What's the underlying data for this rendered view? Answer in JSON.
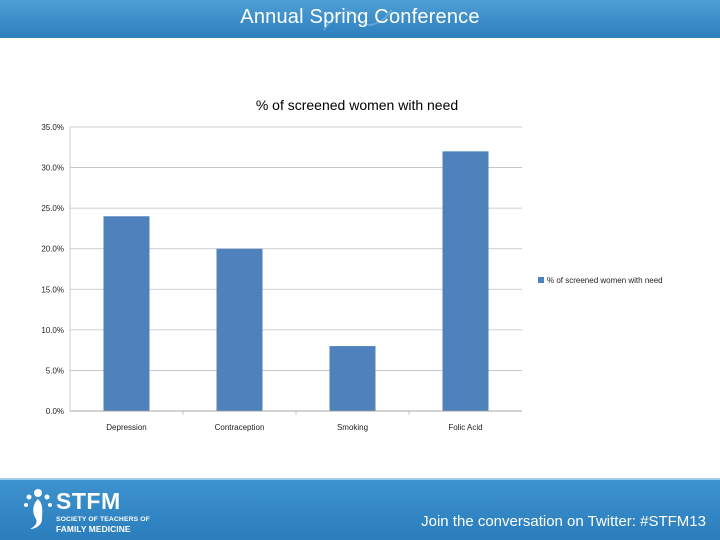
{
  "header": {
    "title": "Annual Spring Conference"
  },
  "footer": {
    "logo_name": "STFM",
    "logo_sub1": "SOCIETY OF TEACHERS OF",
    "logo_sub2": "FAMILY MEDICINE",
    "twitter_text": "Join the conversation on Twitter: #STFM13"
  },
  "colors": {
    "bar": "#4f81bd",
    "header": "#3a8dcc",
    "footer": "#2f82c2"
  },
  "chart_data": {
    "type": "bar",
    "title": "% of screened women with need",
    "categories": [
      "Depression",
      "Contraception",
      "Smoking",
      "Folic Acid"
    ],
    "series": [
      {
        "name": "% of screened women with need",
        "values": [
          24.0,
          20.0,
          8.0,
          32.0
        ]
      }
    ],
    "ylim": [
      0,
      35
    ],
    "yticks": [
      0,
      5,
      10,
      15,
      20,
      25,
      30,
      35
    ],
    "ytick_labels": [
      "0.0%",
      "5.0%",
      "10.0%",
      "15.0%",
      "20.0%",
      "25.0%",
      "30.0%",
      "35.0%"
    ],
    "grid": true,
    "legend": "right",
    "xlabel": "",
    "ylabel": ""
  }
}
